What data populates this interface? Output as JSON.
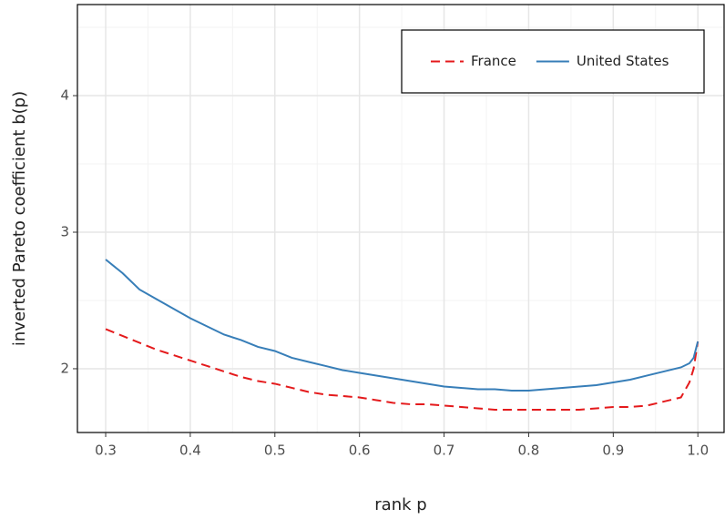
{
  "chart_data": {
    "type": "line",
    "x_label": "rank p",
    "y_label": "inverted Pareto coefficient b(p)",
    "x": [
      0.3,
      0.32,
      0.34,
      0.36,
      0.38,
      0.4,
      0.42,
      0.44,
      0.46,
      0.48,
      0.5,
      0.52,
      0.54,
      0.56,
      0.58,
      0.6,
      0.62,
      0.64,
      0.66,
      0.68,
      0.7,
      0.72,
      0.74,
      0.76,
      0.78,
      0.8,
      0.82,
      0.84,
      0.86,
      0.88,
      0.9,
      0.92,
      0.94,
      0.96,
      0.98,
      0.99,
      0.995,
      1.0
    ],
    "series": [
      {
        "name": "France",
        "color": "#e41a1c",
        "dashed": true,
        "values": [
          2.29,
          2.24,
          2.19,
          2.14,
          2.1,
          2.06,
          2.02,
          1.98,
          1.94,
          1.91,
          1.89,
          1.86,
          1.83,
          1.81,
          1.8,
          1.79,
          1.77,
          1.75,
          1.74,
          1.74,
          1.73,
          1.72,
          1.71,
          1.7,
          1.7,
          1.7,
          1.7,
          1.7,
          1.7,
          1.71,
          1.72,
          1.72,
          1.73,
          1.76,
          1.79,
          1.9,
          2.0,
          2.2
        ]
      },
      {
        "name": "United States",
        "color": "#377eb8",
        "dashed": false,
        "values": [
          2.8,
          2.7,
          2.58,
          2.51,
          2.44,
          2.37,
          2.31,
          2.25,
          2.21,
          2.16,
          2.13,
          2.08,
          2.05,
          2.02,
          1.99,
          1.97,
          1.95,
          1.93,
          1.91,
          1.89,
          1.87,
          1.86,
          1.85,
          1.85,
          1.84,
          1.84,
          1.85,
          1.86,
          1.87,
          1.88,
          1.9,
          1.92,
          1.95,
          1.98,
          2.01,
          2.04,
          2.08,
          2.2
        ]
      }
    ],
    "xlim": [
      0.2666,
      1.031
    ],
    "ylim": [
      1.533,
      4.667
    ],
    "xticks": [
      0.3,
      0.4,
      0.5,
      0.6,
      0.7,
      0.8,
      0.9,
      {
        "value": 1,
        "label": "1.0"
      }
    ],
    "yticks": [
      2,
      3,
      4
    ],
    "grid": true,
    "legend": "top-right"
  }
}
